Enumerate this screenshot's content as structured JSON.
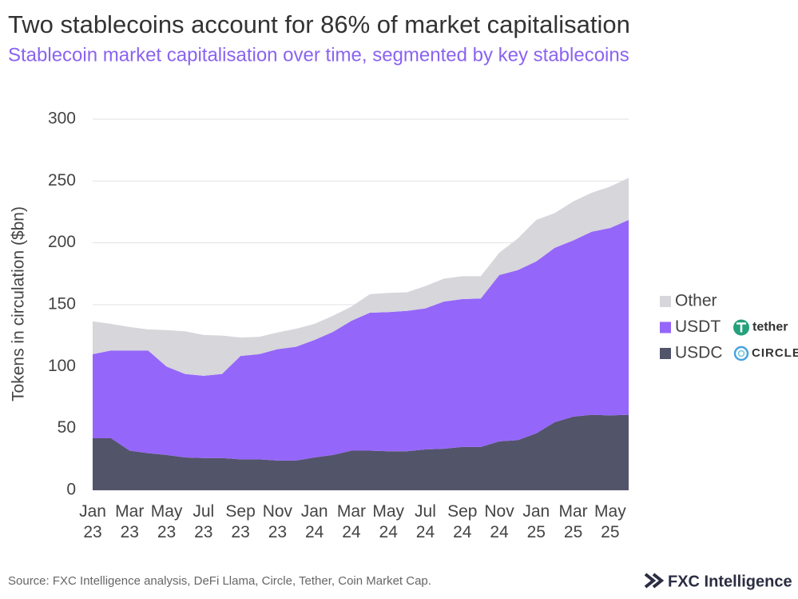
{
  "chart_data": {
    "type": "stacked-area",
    "title": "Two stablecoins account for 86% of market capitalisation",
    "subtitle": "Stablecoin market capitalisation over time, segmented by key stablecoins",
    "y_label": "Tokens in circulation ($bn)",
    "categories": [
      "Jan 23",
      null,
      "Mar 23",
      null,
      "May 23",
      null,
      "Jul 23",
      null,
      "Sep 23",
      null,
      "Nov 23",
      null,
      "Jan 24",
      null,
      "Mar 24",
      null,
      "May 24",
      null,
      "Jul 24",
      null,
      "Sep 24",
      null,
      "Nov 24",
      null,
      "Jan 25",
      null,
      "Mar 25",
      null,
      "May 25",
      null
    ],
    "series": [
      {
        "name": "USDC",
        "logo": "CIRCLE",
        "color": "#52546a",
        "values": [
          42,
          42,
          32,
          30,
          28.5,
          26.5,
          26,
          26,
          25,
          25,
          24,
          24,
          26.5,
          28.5,
          32,
          32,
          31.5,
          31.5,
          33,
          33.5,
          35,
          35,
          39.5,
          40.5,
          46,
          55,
          59.5,
          61,
          60.5,
          61
        ]
      },
      {
        "name": "USDT",
        "logo": "tether",
        "color": "#9566fa",
        "values": [
          68,
          71,
          81,
          83,
          71.5,
          67.5,
          66.5,
          68,
          83.5,
          85,
          90,
          92,
          95,
          99.5,
          105,
          111.5,
          112.5,
          113.5,
          114,
          119,
          119.5,
          120,
          134.5,
          137.5,
          139,
          141,
          142.5,
          148,
          151.5,
          157.5
        ]
      },
      {
        "name": "Other",
        "color": "#d6d6db",
        "values": [
          26.5,
          21.5,
          19,
          17,
          29.5,
          34.5,
          33,
          31,
          15,
          14,
          13.5,
          14.5,
          13,
          13,
          11.5,
          15,
          15.5,
          15,
          18,
          18.5,
          18.5,
          18,
          18,
          25.5,
          33.5,
          28,
          31.5,
          31.5,
          33.5,
          34
        ]
      }
    ],
    "ylim": [
      0,
      300
    ],
    "yticks": [
      0,
      50,
      100,
      150,
      200,
      250,
      300
    ],
    "grid": true,
    "legend": "right",
    "source": "Source: FXC Intelligence analysis, DeFi Llama, Circle, Tether, Coin Market Cap.",
    "brand": "FXC Intelligence"
  }
}
